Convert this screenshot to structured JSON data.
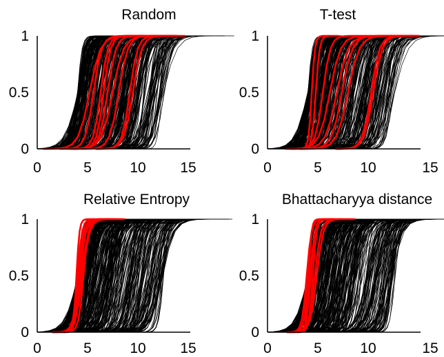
{
  "figure": {
    "colors": {
      "background_lines": "#000000",
      "highlight_lines": "#ff0000",
      "axes": "#000000"
    }
  },
  "chart_data": [
    {
      "type": "line",
      "title": "Random",
      "xlabel": "",
      "ylabel": "",
      "xlim": [
        0,
        15
      ],
      "ylim": [
        0,
        1
      ],
      "xticks": [
        "0",
        "5",
        "10",
        "15"
      ],
      "yticks": [
        "0",
        "0.5",
        "1"
      ],
      "grid": false,
      "series": [
        {
          "role": "background",
          "color": "#000000",
          "curve_count": 400,
          "x_at_half_range": [
            4.0,
            12.7
          ]
        },
        {
          "role": "highlight",
          "color": "#ff0000",
          "x_at_half": [
            5.2,
            5.6,
            6.3,
            6.6,
            7.0,
            7.5,
            8.1,
            9.2,
            9.5
          ]
        }
      ]
    },
    {
      "type": "line",
      "title": "T-test",
      "xlabel": "",
      "ylabel": "",
      "xlim": [
        0,
        15
      ],
      "ylim": [
        0,
        1
      ],
      "xticks": [
        "0",
        "5",
        "10",
        "15"
      ],
      "yticks": [
        "0",
        "0.5",
        "1"
      ],
      "grid": false,
      "series": [
        {
          "role": "background",
          "color": "#000000",
          "curve_count": 400,
          "x_at_half_range": [
            4.0,
            12.7
          ]
        },
        {
          "role": "highlight",
          "color": "#ff0000",
          "x_at_half": [
            4.4,
            4.8,
            5.5,
            6.2,
            6.9,
            7.4,
            8.0,
            10.3,
            10.5
          ]
        }
      ]
    },
    {
      "type": "line",
      "title": "Relative Entropy",
      "xlabel": "",
      "ylabel": "",
      "xlim": [
        0,
        15
      ],
      "ylim": [
        0,
        1
      ],
      "xticks": [
        "0",
        "5",
        "10",
        "15"
      ],
      "yticks": [
        "0",
        "0.5",
        "1"
      ],
      "grid": false,
      "series": [
        {
          "role": "background",
          "color": "#000000",
          "curve_count": 400,
          "x_at_half_range": [
            4.0,
            12.7
          ]
        },
        {
          "role": "highlight",
          "color": "#ff0000",
          "x_at_half": [
            3.9,
            4.0,
            4.1,
            4.2,
            4.3,
            4.4,
            4.5,
            4.6
          ]
        }
      ]
    },
    {
      "type": "line",
      "title": "Bhattacharyya distance",
      "xlabel": "",
      "ylabel": "",
      "xlim": [
        0,
        15
      ],
      "ylim": [
        0,
        1
      ],
      "xticks": [
        "0",
        "5",
        "10",
        "15"
      ],
      "yticks": [
        "0",
        "0.5",
        "1"
      ],
      "grid": false,
      "series": [
        {
          "role": "background",
          "color": "#000000",
          "curve_count": 400,
          "x_at_half_range": [
            4.0,
            12.7
          ]
        },
        {
          "role": "highlight",
          "color": "#ff0000",
          "x_at_half": [
            3.9,
            4.0,
            4.1,
            4.2,
            4.3,
            4.5,
            4.7,
            4.9
          ]
        }
      ]
    }
  ]
}
